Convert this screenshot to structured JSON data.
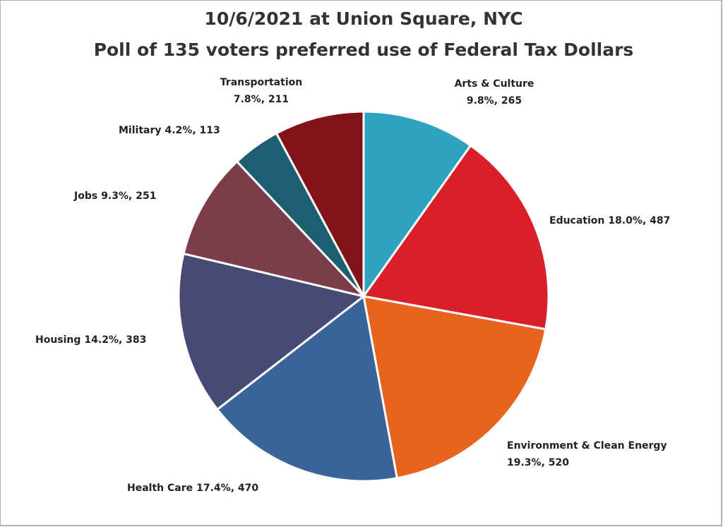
{
  "chart_data": {
    "type": "pie",
    "title": "10/6/2021 at Union Square, NYC",
    "subtitle": "Poll of 135 voters preferred use of Federal Tax Dollars",
    "categories": [
      "Arts & Culture",
      "Education",
      "Environment & Clean Energy",
      "Health Care",
      "Housing",
      "Jobs",
      "Military",
      "Transportation"
    ],
    "values": [
      265,
      487,
      520,
      470,
      383,
      251,
      113,
      211
    ],
    "value_labels": [
      "9.8%, 265",
      "18.0%, 487",
      "19.3%, 520",
      "17.4%, 470",
      "14.2%, 383",
      "9.3%, 251",
      "4.2%, 113",
      "7.8%, 211"
    ],
    "colors": [
      "#2ea3c0",
      "#d9202a",
      "#e8641e",
      "#3a6399",
      "#474a75",
      "#7b3d4a",
      "#1d5e73",
      "#81141b"
    ]
  }
}
